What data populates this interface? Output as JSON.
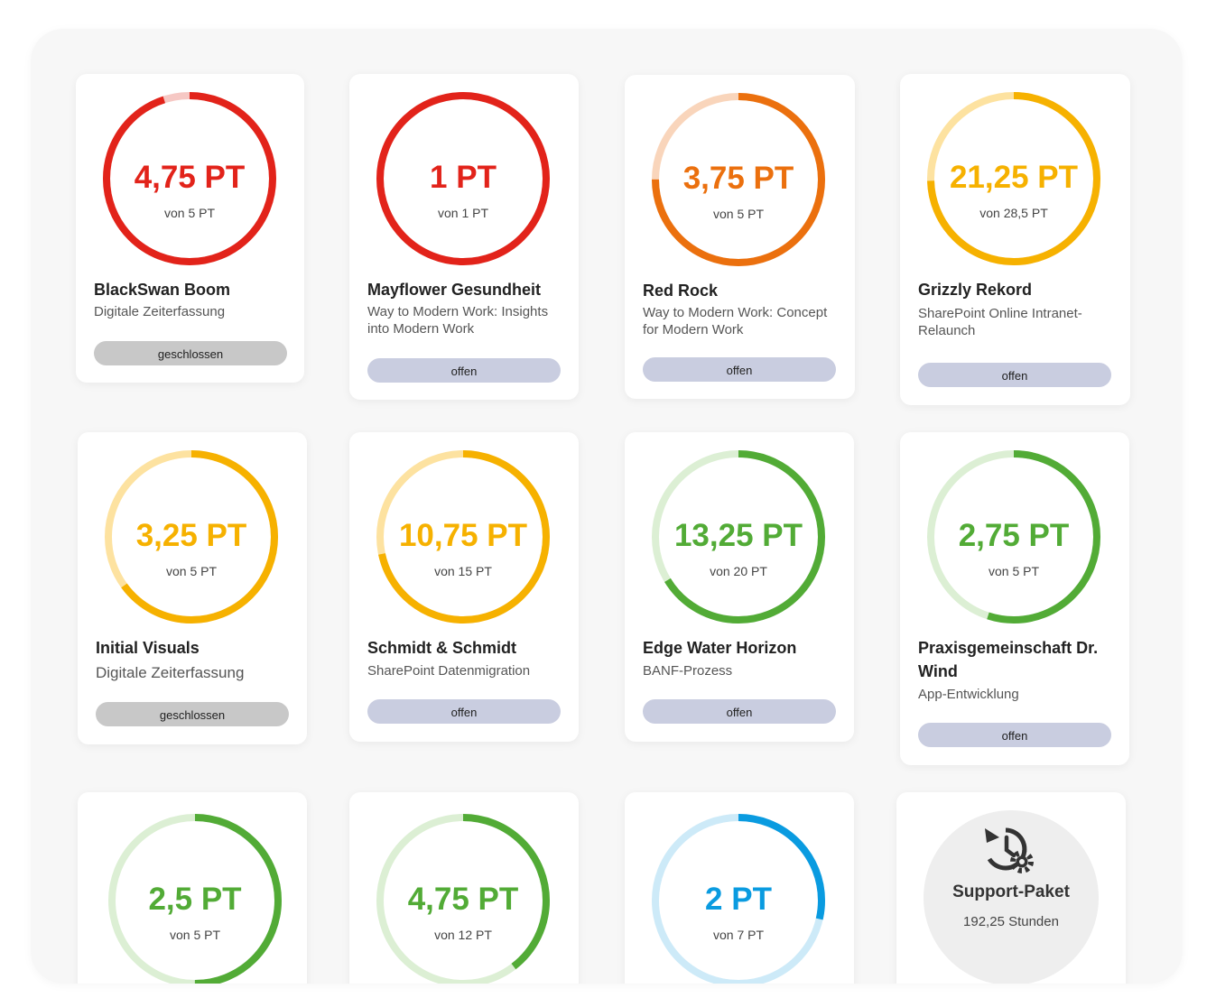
{
  "cards": [
    {
      "title": "BlackSwan Boom",
      "subtitle": "Digitale Zeiterfassung",
      "value": "4,75 PT",
      "of": "von 5 PT",
      "progress": 0.95,
      "color": "#e2231a",
      "track": "#f6c8c4",
      "status": "geschlossen",
      "status_type": "closed"
    },
    {
      "title": "Mayflower Gesundheit",
      "subtitle": "Way to Modern Work: Insights into Modern Work",
      "value": "1 PT",
      "of": "von 1 PT",
      "progress": 1.0,
      "color": "#e2231a",
      "track": "#f6c8c4",
      "status": "offen",
      "status_type": "open"
    },
    {
      "title": "Red Rock",
      "subtitle": "Way to Modern Work: Concept for Modern Work",
      "value": "3,75 PT",
      "of": "von 5 PT",
      "progress": 0.75,
      "color": "#eb700e",
      "track": "#f9d5bb",
      "status": "offen",
      "status_type": "open"
    },
    {
      "title": "Grizzly Rekord",
      "subtitle": "SharePoint Online Intranet-Relaunch",
      "value": "21,25 PT",
      "of": "von 28,5 PT",
      "progress": 0.7456,
      "color": "#f6b100",
      "track": "#fde2a0",
      "status": "offen",
      "status_type": "open"
    },
    {
      "title": "Initial Visuals",
      "subtitle": "Digitale Zeiterfassung",
      "value": "3,25 PT",
      "of": "von 5 PT",
      "progress": 0.65,
      "color": "#f6b100",
      "track": "#fde2a0",
      "status": "geschlossen",
      "status_type": "closed"
    },
    {
      "title": "Schmidt & Schmidt",
      "subtitle": "SharePoint Datenmigration",
      "value": "10,75 PT",
      "of": "von 15 PT",
      "progress": 0.7167,
      "color": "#f6b100",
      "track": "#fde2a0",
      "status": "offen",
      "status_type": "open"
    },
    {
      "title": "Edge Water Horizon",
      "subtitle": "BANF-Prozess",
      "value": "13,25 PT",
      "of": "von 20 PT",
      "progress": 0.6625,
      "color": "#52ab36",
      "track": "#dcefd4",
      "status": "offen",
      "status_type": "open"
    },
    {
      "title": "Praxisgemeinschaft Dr. Wind",
      "subtitle": "App-Entwicklung",
      "value": "2,75 PT",
      "of": "von 5 PT",
      "progress": 0.55,
      "color": "#52ab36",
      "track": "#dcefd4",
      "status": "offen",
      "status_type": "open"
    },
    {
      "value": "2,5 PT",
      "of": "von 5 PT",
      "progress": 0.5,
      "color": "#52ab36",
      "track": "#dcefd4"
    },
    {
      "value": "4,75 PT",
      "of": "von 12 PT",
      "progress": 0.3958,
      "color": "#52ab36",
      "track": "#dcefd4"
    },
    {
      "value": "2 PT",
      "of": "von 7 PT",
      "progress": 0.2857,
      "color": "#0a9be0",
      "track": "#cdeaf8"
    }
  ],
  "support": {
    "title": "Support-Paket",
    "hours": "192,25 Stunden",
    "icon": "history-gear-icon"
  }
}
